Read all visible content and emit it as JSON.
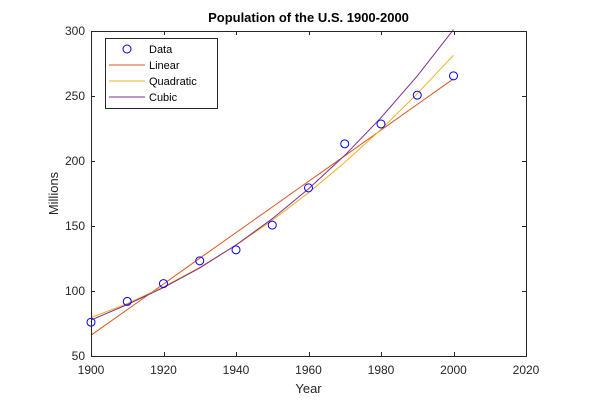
{
  "chart_data": {
    "type": "line",
    "title": "Population of the U.S. 1900-2000",
    "xlabel": "Year",
    "ylabel": "Millions",
    "xlim": [
      1900,
      2020
    ],
    "ylim": [
      50,
      300
    ],
    "xticks": [
      1900,
      1920,
      1940,
      1960,
      1980,
      2000,
      2020
    ],
    "yticks": [
      50,
      100,
      150,
      200,
      250,
      300
    ],
    "grid": false,
    "legend_position": "top-left",
    "x": [
      1900,
      1910,
      1920,
      1930,
      1940,
      1950,
      1960,
      1970,
      1980,
      1990,
      2000
    ],
    "series": [
      {
        "name": "Data",
        "style": "markers",
        "color": "#0000ff",
        "values": [
          75.995,
          91.972,
          105.711,
          123.203,
          131.669,
          150.697,
          179.323,
          213.212,
          228.505,
          250.633,
          265.5
        ]
      },
      {
        "name": "Linear",
        "style": "line",
        "color": "#d95319",
        "values": [
          66.0,
          85.7,
          105.4,
          125.2,
          144.9,
          164.6,
          184.3,
          204.0,
          223.8,
          243.5,
          263.2
        ]
      },
      {
        "name": "Quadratic",
        "style": "line",
        "color": "#edb120",
        "values": [
          79.5,
          90.3,
          103.2,
          118.2,
          135.2,
          154.4,
          175.6,
          198.9,
          224.3,
          251.8,
          281.4
        ]
      },
      {
        "name": "Cubic",
        "style": "line",
        "color": "#7e2f8e",
        "values": [
          77.6,
          89.6,
          102.6,
          117.8,
          135.4,
          155.6,
          178.5,
          204.4,
          233.3,
          265.5,
          301.1
        ]
      }
    ]
  }
}
